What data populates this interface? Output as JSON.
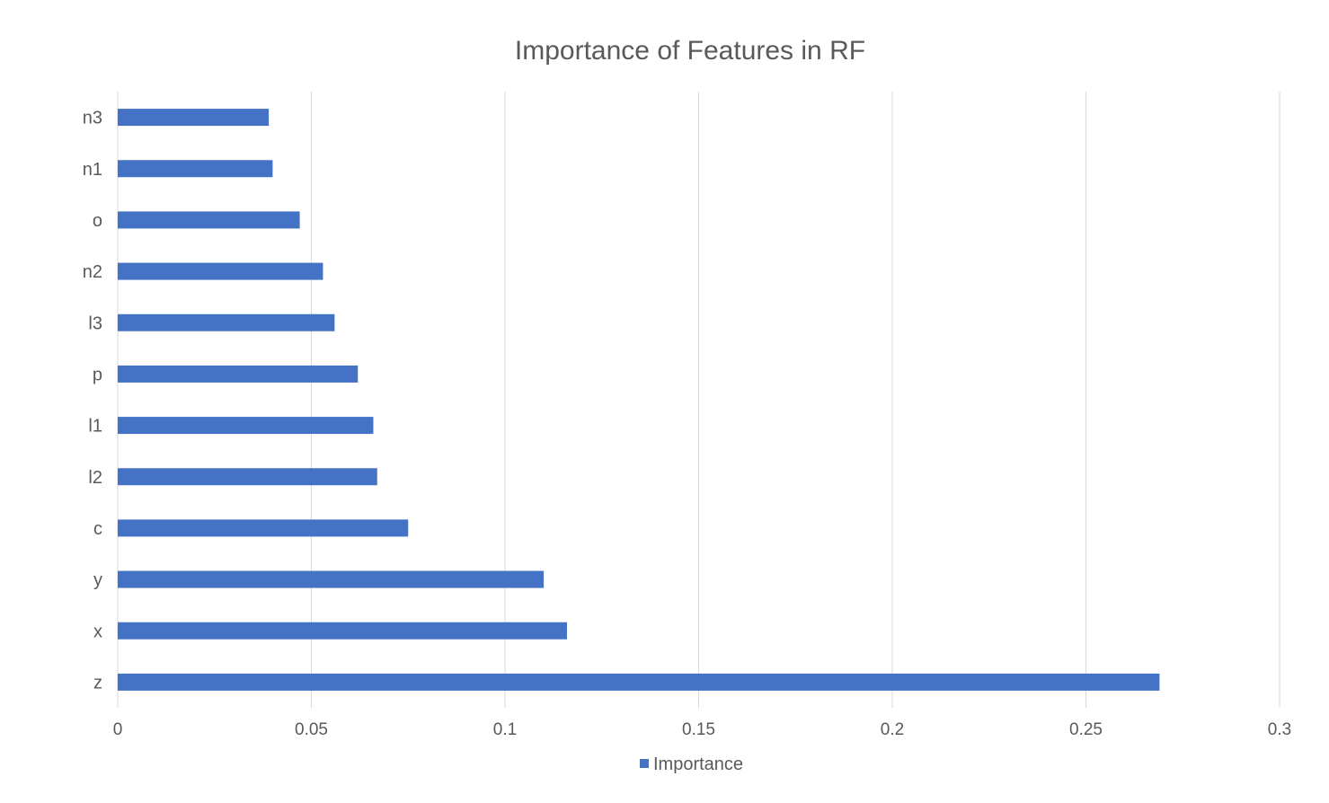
{
  "chart_data": {
    "type": "bar",
    "orientation": "horizontal",
    "title": "Importance of Features in RF",
    "xlabel": "",
    "ylabel": "",
    "categories": [
      "z",
      "x",
      "y",
      "c",
      "l2",
      "l1",
      "p",
      "l3",
      "n2",
      "o",
      "n1",
      "n3"
    ],
    "series": [
      {
        "name": "Importance",
        "values": [
          0.269,
          0.116,
          0.11,
          0.075,
          0.067,
          0.066,
          0.062,
          0.056,
          0.053,
          0.047,
          0.04,
          0.039
        ],
        "color": "#4472C4"
      }
    ],
    "xlim": [
      0,
      0.3
    ],
    "x_ticks": [
      0,
      0.05,
      0.1,
      0.15,
      0.2,
      0.25,
      0.3
    ],
    "x_tick_labels": [
      "0",
      "0.05",
      "0.1",
      "0.15",
      "0.2",
      "0.25",
      "0.3"
    ],
    "grid": true,
    "legend_position": "bottom"
  },
  "colors": {
    "bar": "#4472C4",
    "grid": "#D9D9D9",
    "text": "#595959"
  }
}
